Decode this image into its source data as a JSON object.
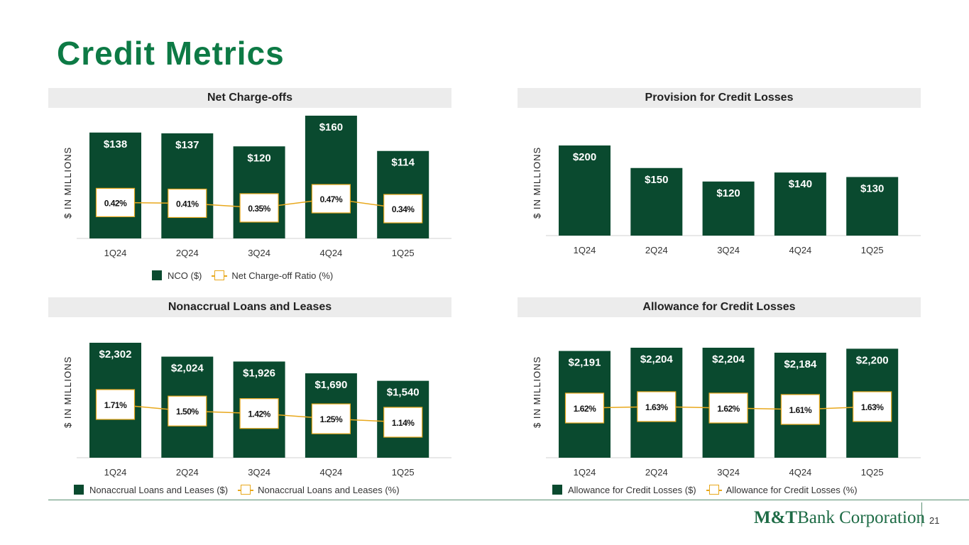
{
  "title": "Credit Metrics",
  "page_number": "21",
  "brand": {
    "mark": "M&T",
    "rest": "Bank Corporation"
  },
  "colors": {
    "title": "#0d7a45",
    "bar": "#0a4a2f",
    "line": "#e8a81c",
    "header_bg": "#ececec"
  },
  "chart_data": [
    {
      "id": "nco",
      "type": "bar",
      "title": "Net Charge-offs",
      "ylabel": "$ IN  MILLIONS",
      "categories": [
        "1Q24",
        "2Q24",
        "3Q24",
        "4Q24",
        "1Q25"
      ],
      "series": [
        {
          "name": "NCO ($)",
          "values": [
            138,
            137,
            120,
            160,
            114
          ],
          "labels": [
            "$138",
            "$137",
            "$120",
            "$160",
            "$114"
          ]
        },
        {
          "name": "Net Charge-off Ratio (%)",
          "type": "line",
          "values": [
            0.42,
            0.41,
            0.35,
            0.47,
            0.34
          ],
          "labels": [
            "0.42%",
            "0.41%",
            "0.35%",
            "0.47%",
            "0.34%"
          ]
        }
      ]
    },
    {
      "id": "provision",
      "type": "bar",
      "title": "Provision for Credit Losses",
      "ylabel": "$ IN  MILLIONS",
      "categories": [
        "1Q24",
        "2Q24",
        "3Q24",
        "4Q24",
        "1Q25"
      ],
      "series": [
        {
          "values": [
            200,
            150,
            120,
            140,
            130
          ],
          "labels": [
            "$200",
            "$150",
            "$120",
            "$140",
            "$130"
          ]
        }
      ]
    },
    {
      "id": "nonaccrual",
      "type": "bar",
      "title": "Nonaccrual Loans and Leases",
      "ylabel": "$ IN  MILLIONS",
      "categories": [
        "1Q24",
        "2Q24",
        "3Q24",
        "4Q24",
        "1Q25"
      ],
      "series": [
        {
          "name": "Nonaccrual Loans and Leases ($)",
          "values": [
            2302,
            2024,
            1926,
            1690,
            1540
          ],
          "labels": [
            "$2,302",
            "$2,024",
            "$1,926",
            "$1,690",
            "$1,540"
          ]
        },
        {
          "name": "Nonaccrual Loans and Leases (%)",
          "type": "line",
          "values": [
            1.71,
            1.5,
            1.42,
            1.25,
            1.14
          ],
          "labels": [
            "1.71%",
            "1.50%",
            "1.42%",
            "1.25%",
            "1.14%"
          ]
        }
      ]
    },
    {
      "id": "allowance",
      "type": "bar",
      "title": "Allowance for Credit Losses",
      "ylabel": "$ IN  MILLIONS",
      "categories": [
        "1Q24",
        "2Q24",
        "3Q24",
        "4Q24",
        "1Q25"
      ],
      "series": [
        {
          "name": "Allowance for Credit Losses ($)",
          "values": [
            2191,
            2204,
            2204,
            2184,
            2200
          ],
          "labels": [
            "$2,191",
            "$2,204",
            "$2,204",
            "$2,184",
            "$2,200"
          ]
        },
        {
          "name": "Allowance for Credit Losses (%)",
          "type": "line",
          "values": [
            1.62,
            1.63,
            1.62,
            1.61,
            1.63
          ],
          "labels": [
            "1.62%",
            "1.63%",
            "1.62%",
            "1.61%",
            "1.63%"
          ]
        }
      ]
    }
  ]
}
